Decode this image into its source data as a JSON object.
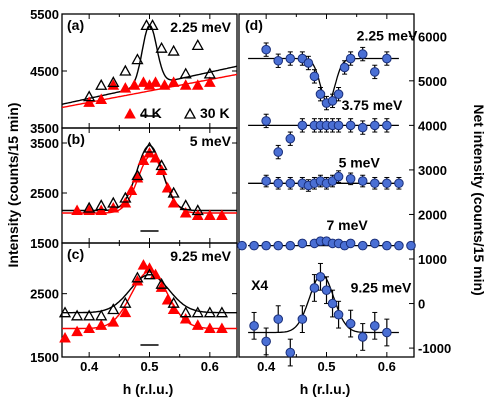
{
  "figure": {
    "left_ylabel": "Intensity (counts/15 min)",
    "right_ylabel": "Net intensity (counts/15 min)",
    "xlabel": "h (r.l.u.)",
    "x_ticks": [
      "0.4",
      "0.5",
      "0.6"
    ],
    "x_tick_values": [
      0.4,
      0.5,
      0.6
    ],
    "xlim": [
      0.355,
      0.645
    ]
  },
  "chart_data": [
    {
      "type": "scatter",
      "panel": "(a)",
      "energy_label": "2.25 meV",
      "ylim": [
        3500,
        5500
      ],
      "y_ticks": [
        "3500",
        "4500",
        "5500"
      ],
      "y_tick_values": [
        3500,
        4500,
        5500
      ],
      "legend": [
        {
          "marker": "filled-triangle",
          "label": "4 K",
          "color": "#ff0000"
        },
        {
          "marker": "open-triangle",
          "label": "30 K",
          "color": "#000000"
        }
      ],
      "series": [
        {
          "name": "4 K",
          "color": "#ff0000",
          "marker": "filled-triangle",
          "x": [
            0.4,
            0.42,
            0.44,
            0.46,
            0.475,
            0.49,
            0.5,
            0.51,
            0.525,
            0.54,
            0.56,
            0.58,
            0.6
          ],
          "y": [
            3950,
            4000,
            4250,
            4200,
            4250,
            4300,
            4250,
            4300,
            4250,
            4300,
            4250,
            4250,
            4300
          ],
          "fit": {
            "baseline": 4150,
            "slope": 2000,
            "amplitude": 0,
            "center": 0.5,
            "width": 0.02
          }
        },
        {
          "name": "30 K",
          "color": "#000000",
          "marker": "open-triangle",
          "x": [
            0.4,
            0.42,
            0.44,
            0.46,
            0.48,
            0.495,
            0.505,
            0.52,
            0.54,
            0.56,
            0.58,
            0.6
          ],
          "y": [
            4050,
            4250,
            4300,
            4500,
            4700,
            5300,
            5300,
            4900,
            4850,
            4450,
            4950,
            4450
          ],
          "fit": {
            "baseline": 4250,
            "slope": 2300,
            "amplitude": 1050,
            "center": 0.5,
            "width": 0.012
          }
        }
      ]
    },
    {
      "type": "scatter",
      "panel": "(b)",
      "energy_label": "5 meV",
      "ylim": [
        1500,
        3800
      ],
      "y_ticks": [
        "1500",
        "2500",
        "3500"
      ],
      "y_tick_values": [
        1500,
        2500,
        3500
      ],
      "series": [
        {
          "name": "4 K",
          "color": "#ff0000",
          "marker": "filled-triangle",
          "x": [
            0.38,
            0.4,
            0.42,
            0.44,
            0.46,
            0.47,
            0.48,
            0.49,
            0.5,
            0.51,
            0.52,
            0.53,
            0.54,
            0.56,
            0.58,
            0.6,
            0.62
          ],
          "y": [
            2150,
            2150,
            2150,
            2200,
            2300,
            2550,
            2800,
            3150,
            3300,
            3200,
            2950,
            2600,
            2300,
            2100,
            2050,
            2050,
            2050
          ],
          "fit": {
            "baseline": 2100,
            "slope": 0,
            "amplitude": 1150,
            "center": 0.503,
            "width": 0.022
          }
        },
        {
          "name": "30 K",
          "color": "#000000",
          "marker": "open-triangle",
          "x": [
            0.4,
            0.42,
            0.44,
            0.46,
            0.48,
            0.5,
            0.52,
            0.54,
            0.56,
            0.58
          ],
          "y": [
            2200,
            2250,
            2300,
            2400,
            2850,
            3400,
            3050,
            2500,
            2250,
            2150
          ],
          "fit": {
            "baseline": 2150,
            "slope": 0,
            "amplitude": 1300,
            "center": 0.5,
            "width": 0.021
          }
        }
      ]
    },
    {
      "type": "scatter",
      "panel": "(c)",
      "energy_label": "9.25 meV",
      "ylim": [
        1500,
        3300
      ],
      "y_ticks": [
        "1500",
        "2500"
      ],
      "y_tick_values": [
        1500,
        2500
      ],
      "series": [
        {
          "name": "4 K",
          "color": "#ff0000",
          "marker": "filled-triangle",
          "x": [
            0.36,
            0.38,
            0.4,
            0.42,
            0.44,
            0.46,
            0.48,
            0.49,
            0.5,
            0.51,
            0.52,
            0.53,
            0.54,
            0.56,
            0.58,
            0.6,
            0.62
          ],
          "y": [
            1800,
            1900,
            1950,
            2000,
            2050,
            2200,
            2700,
            2950,
            2900,
            2800,
            2600,
            2400,
            2250,
            2100,
            2000,
            1950,
            1950
          ],
          "fit": {
            "baseline": 1950,
            "slope": 0,
            "amplitude": 900,
            "center": 0.5,
            "width": 0.03
          }
        },
        {
          "name": "30 K",
          "color": "#000000",
          "marker": "open-triangle",
          "x": [
            0.36,
            0.38,
            0.4,
            0.42,
            0.44,
            0.46,
            0.48,
            0.5,
            0.52,
            0.54,
            0.56,
            0.58,
            0.6,
            0.62
          ],
          "y": [
            2200,
            2150,
            2150,
            2150,
            2250,
            2350,
            2750,
            2800,
            2650,
            2350,
            2200,
            2200,
            2200,
            2200
          ],
          "fit": {
            "baseline": 2200,
            "slope": 0,
            "amplitude": 600,
            "center": 0.5,
            "width": 0.032
          }
        }
      ]
    },
    {
      "type": "scatter",
      "panel": "(d)",
      "ylim": [
        -1200,
        6500
      ],
      "y_ticks": [
        "-1000",
        "0",
        "1000",
        "2000",
        "3000",
        "4000",
        "5000",
        "6000"
      ],
      "y_tick_values": [
        -1000,
        0,
        1000,
        2000,
        3000,
        4000,
        5000,
        6000
      ],
      "multiplier_label": "X4",
      "series": [
        {
          "name": "2.25 meV",
          "offset": 5500,
          "x": [
            0.4,
            0.42,
            0.44,
            0.46,
            0.47,
            0.48,
            0.49,
            0.5,
            0.51,
            0.52,
            0.53,
            0.54,
            0.56,
            0.58,
            0.6
          ],
          "y": [
            200,
            -50,
            0,
            0,
            -100,
            -400,
            -800,
            -1000,
            -950,
            -800,
            -200,
            0,
            100,
            -300,
            0
          ],
          "err": [
            150,
            150,
            150,
            150,
            150,
            150,
            150,
            150,
            150,
            150,
            150,
            150,
            150,
            150,
            150
          ],
          "fit": {
            "amplitude": -1000,
            "center": 0.502,
            "width": 0.012
          }
        },
        {
          "name": "3.75 meV",
          "offset": 4000,
          "x": [
            0.4,
            0.42,
            0.44,
            0.46,
            0.48,
            0.49,
            0.5,
            0.51,
            0.52,
            0.54,
            0.56,
            0.58,
            0.6
          ],
          "y": [
            100,
            -600,
            -300,
            0,
            0,
            0,
            0,
            0,
            0,
            0,
            -50,
            0,
            0
          ],
          "err": [
            150,
            150,
            150,
            150,
            150,
            150,
            150,
            150,
            150,
            150,
            150,
            150,
            150
          ],
          "fit": {
            "amplitude": 0,
            "center": 0.5,
            "width": 0.02
          }
        },
        {
          "name": "5 meV",
          "offset": 2700,
          "x": [
            0.4,
            0.42,
            0.44,
            0.46,
            0.47,
            0.48,
            0.49,
            0.5,
            0.51,
            0.52,
            0.54,
            0.56,
            0.58,
            0.6,
            0.62
          ],
          "y": [
            50,
            0,
            0,
            0,
            -50,
            0,
            50,
            0,
            50,
            150,
            100,
            50,
            0,
            0,
            0
          ],
          "err": [
            130,
            130,
            130,
            130,
            130,
            130,
            130,
            130,
            130,
            130,
            130,
            130,
            130,
            130,
            130
          ],
          "fit": {
            "amplitude": 0,
            "center": 0.5,
            "width": 0.02
          }
        },
        {
          "name": "7 meV",
          "offset": 1300,
          "x": [
            0.36,
            0.38,
            0.4,
            0.42,
            0.44,
            0.46,
            0.48,
            0.49,
            0.5,
            0.51,
            0.52,
            0.53,
            0.54,
            0.56,
            0.58,
            0.6,
            0.62,
            0.64
          ],
          "y": [
            0,
            0,
            0,
            0,
            0,
            50,
            50,
            100,
            100,
            50,
            50,
            0,
            50,
            0,
            50,
            0,
            0,
            0
          ],
          "err": [
            80,
            80,
            80,
            80,
            80,
            80,
            80,
            80,
            80,
            80,
            80,
            80,
            80,
            80,
            80,
            80,
            80,
            80
          ],
          "fit": {
            "amplitude": 0,
            "center": 0.5,
            "width": 0.02
          }
        },
        {
          "name": "9.25 meV",
          "offset": -650,
          "x": [
            0.38,
            0.4,
            0.42,
            0.44,
            0.46,
            0.48,
            0.49,
            0.5,
            0.51,
            0.52,
            0.54,
            0.56,
            0.58,
            0.6
          ],
          "y": [
            150,
            -200,
            300,
            -450,
            300,
            1000,
            1250,
            950,
            650,
            400,
            200,
            -100,
            150,
            0
          ],
          "err": [
            300,
            300,
            300,
            300,
            300,
            300,
            300,
            300,
            300,
            300,
            300,
            300,
            300,
            300
          ],
          "fit": {
            "amplitude": 1300,
            "center": 0.492,
            "width": 0.02
          }
        }
      ]
    }
  ]
}
